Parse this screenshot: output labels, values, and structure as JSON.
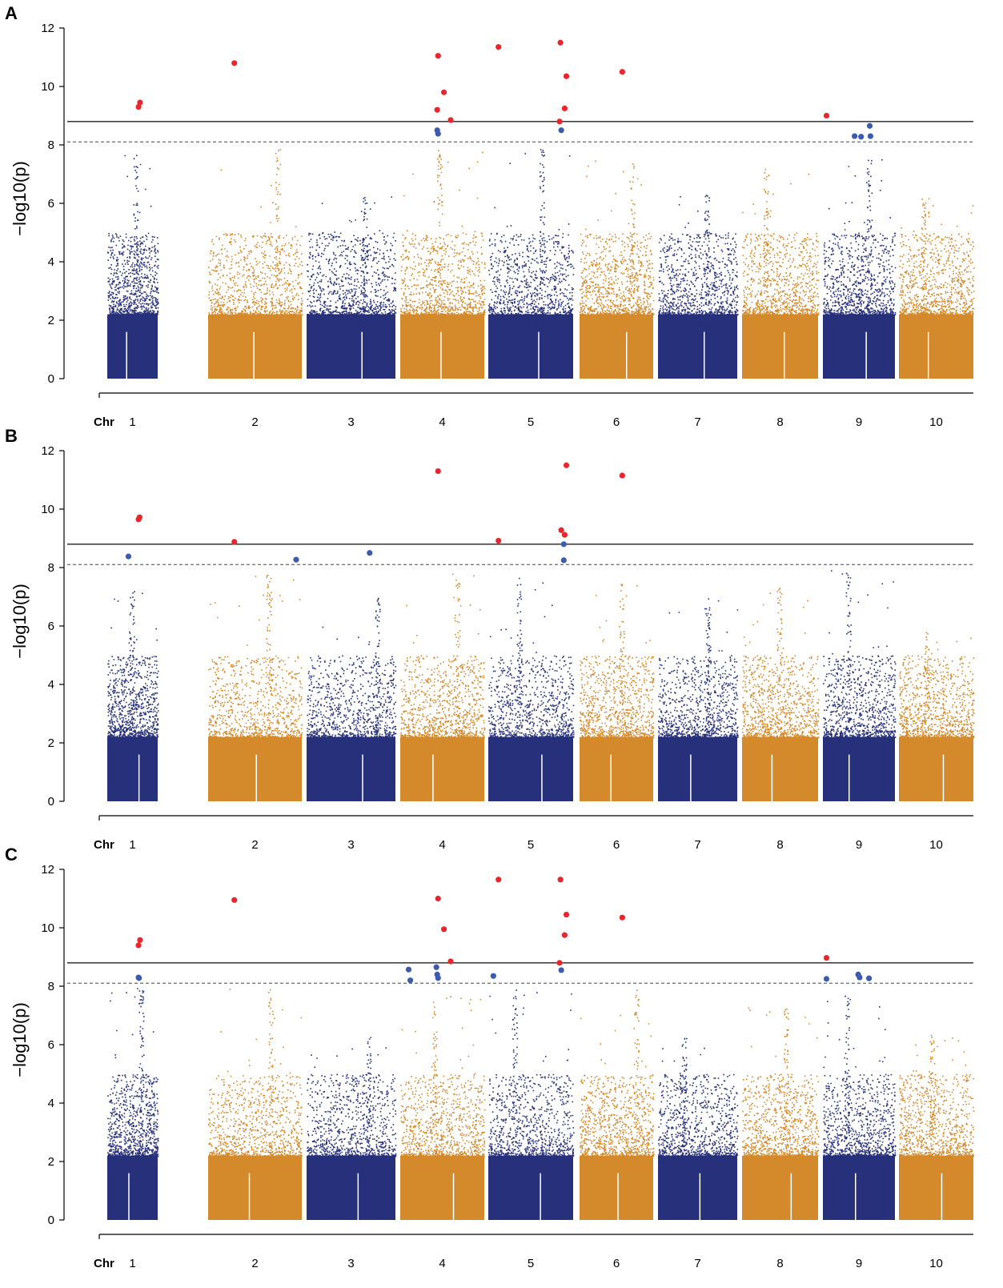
{
  "colors": {
    "odd_chromosome": "#27307a",
    "even_chromosome": "#d48a2a",
    "significant_above_threshold": "#e8262b",
    "significant_between_thresholds": "#3a5bb0",
    "threshold_solid": "#222222",
    "threshold_dashed": "#777777"
  },
  "chart_data": [
    {
      "type": "scatter",
      "panel": "A",
      "ylabel": "−log10(p)",
      "xlabel": "Chr",
      "chromosomes": [
        "1",
        "2",
        "3",
        "4",
        "5",
        "6",
        "7",
        "8",
        "9",
        "10"
      ],
      "ylim": [
        0,
        12
      ],
      "yticks": [
        "0",
        "2",
        "4",
        "6",
        "8",
        "10",
        "12"
      ],
      "threshold_solid": 8.8,
      "threshold_dashed": 8.1,
      "background_peak_by_chr": [
        7.8,
        7.9,
        6.3,
        8.0,
        7.9,
        7.5,
        6.3,
        7.2,
        7.6,
        6.3
      ],
      "red_points": [
        {
          "chr": 1,
          "pos": 0.62,
          "y": 9.3
        },
        {
          "chr": 1,
          "pos": 0.65,
          "y": 9.45
        },
        {
          "chr": 2,
          "pos": 0.28,
          "y": 10.8
        },
        {
          "chr": 4,
          "pos": 0.45,
          "y": 11.05
        },
        {
          "chr": 4,
          "pos": 0.52,
          "y": 9.8
        },
        {
          "chr": 4,
          "pos": 0.44,
          "y": 9.2
        },
        {
          "chr": 4,
          "pos": 0.6,
          "y": 8.85
        },
        {
          "chr": 5,
          "pos": 0.12,
          "y": 11.35
        },
        {
          "chr": 5,
          "pos": 0.85,
          "y": 11.5
        },
        {
          "chr": 5,
          "pos": 0.92,
          "y": 10.35
        },
        {
          "chr": 5,
          "pos": 0.9,
          "y": 9.25
        },
        {
          "chr": 5,
          "pos": 0.84,
          "y": 8.8
        },
        {
          "chr": 6,
          "pos": 0.58,
          "y": 10.5
        },
        {
          "chr": 9,
          "pos": 0.05,
          "y": 9.0
        }
      ],
      "blue_points": [
        {
          "chr": 4,
          "pos": 0.44,
          "y": 8.5
        },
        {
          "chr": 4,
          "pos": 0.45,
          "y": 8.38
        },
        {
          "chr": 5,
          "pos": 0.86,
          "y": 8.5
        },
        {
          "chr": 9,
          "pos": 0.44,
          "y": 8.3
        },
        {
          "chr": 9,
          "pos": 0.53,
          "y": 8.28
        },
        {
          "chr": 9,
          "pos": 0.65,
          "y": 8.65
        },
        {
          "chr": 9,
          "pos": 0.66,
          "y": 8.3
        }
      ]
    },
    {
      "type": "scatter",
      "panel": "B",
      "ylabel": "−log10(p)",
      "xlabel": "Chr",
      "chromosomes": [
        "1",
        "2",
        "3",
        "4",
        "5",
        "6",
        "7",
        "8",
        "9",
        "10"
      ],
      "ylim": [
        0,
        12
      ],
      "yticks": [
        "0",
        "2",
        "4",
        "6",
        "8",
        "10",
        "12"
      ],
      "threshold_solid": 8.8,
      "threshold_dashed": 8.1,
      "background_peak_by_chr": [
        7.6,
        7.8,
        7.0,
        7.8,
        7.8,
        7.6,
        7.0,
        7.5,
        8.0,
        5.8
      ],
      "red_points": [
        {
          "chr": 1,
          "pos": 0.62,
          "y": 9.65
        },
        {
          "chr": 1,
          "pos": 0.64,
          "y": 9.72
        },
        {
          "chr": 2,
          "pos": 0.28,
          "y": 8.88
        },
        {
          "chr": 4,
          "pos": 0.45,
          "y": 11.3
        },
        {
          "chr": 5,
          "pos": 0.12,
          "y": 8.92
        },
        {
          "chr": 5,
          "pos": 0.86,
          "y": 9.28
        },
        {
          "chr": 5,
          "pos": 0.9,
          "y": 9.12
        },
        {
          "chr": 5,
          "pos": 0.92,
          "y": 11.5
        },
        {
          "chr": 6,
          "pos": 0.58,
          "y": 11.15
        }
      ],
      "blue_points": [
        {
          "chr": 1,
          "pos": 0.42,
          "y": 8.38
        },
        {
          "chr": 2,
          "pos": 0.94,
          "y": 8.27
        },
        {
          "chr": 3,
          "pos": 0.71,
          "y": 8.5
        },
        {
          "chr": 5,
          "pos": 0.89,
          "y": 8.8
        },
        {
          "chr": 5,
          "pos": 0.89,
          "y": 8.25
        }
      ]
    },
    {
      "type": "scatter",
      "panel": "C",
      "ylabel": "−log10(p)",
      "xlabel": "Chr",
      "chromosomes": [
        "1",
        "2",
        "3",
        "4",
        "5",
        "6",
        "7",
        "8",
        "9",
        "10"
      ],
      "ylim": [
        0,
        12
      ],
      "yticks": [
        "0",
        "2",
        "4",
        "6",
        "8",
        "10",
        "12"
      ],
      "threshold_solid": 8.8,
      "threshold_dashed": 8.1,
      "background_peak_by_chr": [
        8.0,
        8.0,
        6.3,
        7.7,
        7.9,
        7.9,
        6.3,
        7.3,
        7.8,
        6.4
      ],
      "red_points": [
        {
          "chr": 1,
          "pos": 0.62,
          "y": 9.4
        },
        {
          "chr": 1,
          "pos": 0.65,
          "y": 9.58
        },
        {
          "chr": 2,
          "pos": 0.28,
          "y": 10.95
        },
        {
          "chr": 4,
          "pos": 0.45,
          "y": 11.0
        },
        {
          "chr": 4,
          "pos": 0.52,
          "y": 9.95
        },
        {
          "chr": 4,
          "pos": 0.6,
          "y": 8.85
        },
        {
          "chr": 5,
          "pos": 0.12,
          "y": 11.65
        },
        {
          "chr": 5,
          "pos": 0.85,
          "y": 11.65
        },
        {
          "chr": 5,
          "pos": 0.92,
          "y": 10.45
        },
        {
          "chr": 5,
          "pos": 0.9,
          "y": 9.75
        },
        {
          "chr": 5,
          "pos": 0.84,
          "y": 8.8
        },
        {
          "chr": 6,
          "pos": 0.58,
          "y": 10.35
        },
        {
          "chr": 9,
          "pos": 0.05,
          "y": 8.97
        }
      ],
      "blue_points": [
        {
          "chr": 1,
          "pos": 0.62,
          "y": 8.3
        },
        {
          "chr": 1,
          "pos": 0.63,
          "y": 8.28
        },
        {
          "chr": 4,
          "pos": 0.1,
          "y": 8.57
        },
        {
          "chr": 4,
          "pos": 0.12,
          "y": 8.2
        },
        {
          "chr": 4,
          "pos": 0.43,
          "y": 8.65
        },
        {
          "chr": 4,
          "pos": 0.44,
          "y": 8.4
        },
        {
          "chr": 4,
          "pos": 0.45,
          "y": 8.28
        },
        {
          "chr": 5,
          "pos": 0.06,
          "y": 8.35
        },
        {
          "chr": 5,
          "pos": 0.86,
          "y": 8.55
        },
        {
          "chr": 9,
          "pos": 0.05,
          "y": 8.25
        },
        {
          "chr": 9,
          "pos": 0.49,
          "y": 8.4
        },
        {
          "chr": 9,
          "pos": 0.51,
          "y": 8.3
        },
        {
          "chr": 9,
          "pos": 0.64,
          "y": 8.27
        }
      ]
    }
  ]
}
